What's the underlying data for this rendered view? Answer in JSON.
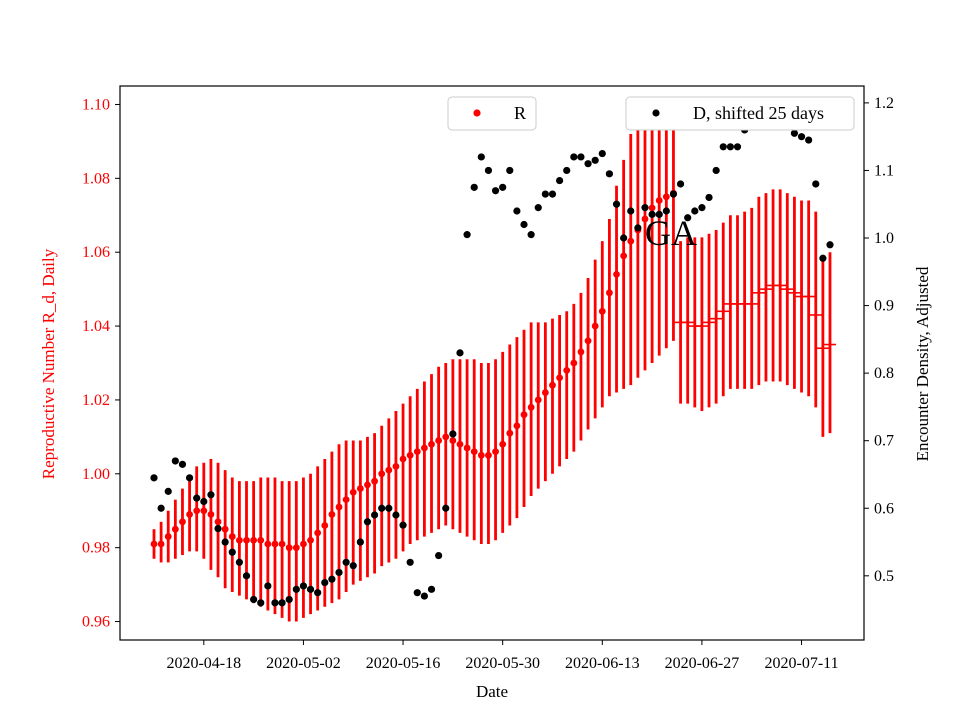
{
  "chart_data": {
    "type": "scatter",
    "annotation": "GA",
    "xlabel": "Date",
    "ylabel_left": "Reproductive Number R_d, Daily",
    "ylabel_right": "Encounter Density, Adjusted",
    "x_ticks": [
      "2020-04-18",
      "2020-05-02",
      "2020-05-16",
      "2020-05-30",
      "2020-06-13",
      "2020-06-27",
      "2020-07-11"
    ],
    "ylim_left": [
      0.955,
      1.105
    ],
    "ylim_right": [
      0.405,
      1.225
    ],
    "yticks_left": [
      "0.96",
      "0.98",
      "1.00",
      "1.02",
      "1.04",
      "1.06",
      "1.08",
      "1.10"
    ],
    "yticks_right": [
      "0.5",
      "0.6",
      "0.7",
      "0.8",
      "0.9",
      "1.0",
      "1.1",
      "1.2"
    ],
    "x_start_date": "2020-04-11",
    "series": [
      {
        "name": "R",
        "color": "#ff0000",
        "axis": "left",
        "day_offsets": [
          0,
          1,
          2,
          3,
          4,
          5,
          6,
          7,
          8,
          9,
          10,
          11,
          12,
          13,
          14,
          15,
          16,
          17,
          18,
          19,
          20,
          21,
          22,
          23,
          24,
          25,
          26,
          27,
          28,
          29,
          30,
          31,
          32,
          33,
          34,
          35,
          36,
          37,
          38,
          39,
          40,
          41,
          42,
          43,
          44,
          45,
          46,
          47,
          48,
          49,
          50,
          51,
          52,
          53,
          54,
          55,
          56,
          57,
          58,
          59,
          60,
          61,
          62,
          63,
          64,
          65,
          66,
          67,
          68,
          69,
          70,
          71,
          72,
          73,
          74,
          75,
          76,
          77,
          78,
          79,
          80,
          81,
          82,
          83,
          84,
          85,
          86,
          87,
          88,
          89,
          90,
          91,
          92,
          93,
          94,
          95
        ],
        "values": [
          0.981,
          0.981,
          0.983,
          0.985,
          0.987,
          0.989,
          0.99,
          0.99,
          0.989,
          0.987,
          0.985,
          0.983,
          0.982,
          0.982,
          0.982,
          0.982,
          0.981,
          0.981,
          0.981,
          0.98,
          0.98,
          0.981,
          0.982,
          0.984,
          0.986,
          0.989,
          0.991,
          0.993,
          0.995,
          0.996,
          0.997,
          0.998,
          1.0,
          1.001,
          1.002,
          1.004,
          1.005,
          1.006,
          1.007,
          1.008,
          1.009,
          1.01,
          1.009,
          1.008,
          1.007,
          1.006,
          1.005,
          1.005,
          1.006,
          1.008,
          1.011,
          1.013,
          1.016,
          1.018,
          1.02,
          1.022,
          1.024,
          1.026,
          1.028,
          1.03,
          1.033,
          1.036,
          1.04,
          1.044,
          1.049,
          1.054,
          1.059,
          1.063,
          1.066,
          1.069,
          1.072,
          1.074,
          1.075,
          1.076,
          1.041,
          1.041,
          1.04,
          1.04,
          1.041,
          1.042,
          1.044,
          1.046,
          1.046,
          1.046,
          1.046,
          1.049,
          1.05,
          1.051,
          1.051,
          1.05,
          1.049,
          1.048,
          1.048,
          1.043,
          1.034,
          1.035
        ],
        "lower": [
          0.977,
          0.976,
          0.976,
          0.977,
          0.978,
          0.979,
          0.979,
          0.977,
          0.974,
          0.972,
          0.969,
          0.968,
          0.967,
          0.966,
          0.965,
          0.964,
          0.963,
          0.962,
          0.961,
          0.96,
          0.96,
          0.961,
          0.962,
          0.963,
          0.964,
          0.965,
          0.966,
          0.968,
          0.97,
          0.971,
          0.972,
          0.973,
          0.975,
          0.976,
          0.977,
          0.979,
          0.981,
          0.982,
          0.983,
          0.984,
          0.985,
          0.986,
          0.985,
          0.984,
          0.983,
          0.982,
          0.981,
          0.981,
          0.982,
          0.984,
          0.986,
          0.988,
          0.991,
          0.994,
          0.996,
          0.998,
          1.0,
          1.002,
          1.004,
          1.006,
          1.009,
          1.012,
          1.015,
          1.018,
          1.021,
          1.022,
          1.023,
          1.024,
          1.026,
          1.028,
          1.03,
          1.032,
          1.034,
          1.036,
          1.019,
          1.019,
          1.018,
          1.017,
          1.018,
          1.019,
          1.021,
          1.023,
          1.023,
          1.023,
          1.023,
          1.024,
          1.025,
          1.025,
          1.025,
          1.024,
          1.023,
          1.022,
          1.021,
          1.018,
          1.01,
          1.011
        ],
        "upper": [
          0.985,
          0.987,
          0.99,
          0.993,
          0.996,
          0.999,
          1.002,
          1.003,
          1.004,
          1.003,
          1.001,
          0.999,
          0.998,
          0.998,
          0.998,
          0.999,
          0.999,
          0.999,
          0.998,
          0.998,
          0.998,
          0.999,
          1.0,
          1.002,
          1.004,
          1.006,
          1.008,
          1.009,
          1.009,
          1.009,
          1.01,
          1.011,
          1.013,
          1.015,
          1.017,
          1.019,
          1.021,
          1.023,
          1.025,
          1.027,
          1.029,
          1.03,
          1.031,
          1.031,
          1.031,
          1.031,
          1.03,
          1.03,
          1.031,
          1.033,
          1.035,
          1.037,
          1.039,
          1.041,
          1.041,
          1.041,
          1.042,
          1.043,
          1.044,
          1.046,
          1.049,
          1.053,
          1.058,
          1.063,
          1.069,
          1.078,
          1.085,
          1.092,
          1.098,
          1.101,
          1.101,
          1.1,
          1.1,
          1.099,
          1.063,
          1.064,
          1.064,
          1.064,
          1.065,
          1.066,
          1.068,
          1.07,
          1.07,
          1.071,
          1.072,
          1.075,
          1.076,
          1.077,
          1.077,
          1.076,
          1.075,
          1.074,
          1.074,
          1.071,
          1.059,
          1.06
        ]
      },
      {
        "name": "D, shifted 25 days",
        "color": "#000000",
        "axis": "right",
        "day_offsets": [
          0,
          1,
          2,
          3,
          4,
          5,
          6,
          7,
          8,
          9,
          10,
          11,
          12,
          13,
          14,
          15,
          16,
          17,
          18,
          19,
          20,
          21,
          22,
          23,
          24,
          25,
          26,
          27,
          28,
          29,
          30,
          31,
          32,
          33,
          34,
          35,
          36,
          37,
          38,
          39,
          40,
          41,
          42,
          43,
          44,
          45,
          46,
          47,
          48,
          49,
          50,
          51,
          52,
          53,
          54,
          55,
          56,
          57,
          58,
          59,
          60,
          61,
          62,
          63,
          64,
          65,
          66,
          67,
          68,
          69,
          70,
          71,
          72,
          73,
          74,
          75,
          76,
          77,
          78,
          79,
          80,
          81,
          82,
          83,
          84,
          85,
          86,
          87,
          88,
          89,
          90,
          91,
          92,
          93,
          94,
          95
        ],
        "values": [
          0.645,
          0.6,
          0.625,
          0.67,
          0.665,
          0.645,
          0.615,
          0.61,
          0.62,
          0.57,
          0.55,
          0.535,
          0.52,
          0.5,
          0.465,
          0.46,
          0.485,
          0.46,
          0.46,
          0.465,
          0.48,
          0.485,
          0.48,
          0.475,
          0.49,
          0.495,
          0.505,
          0.52,
          0.515,
          0.55,
          0.58,
          0.59,
          0.6,
          0.6,
          0.59,
          0.575,
          0.52,
          0.475,
          0.47,
          0.48,
          0.53,
          0.6,
          0.71,
          0.83,
          1.005,
          1.075,
          1.12,
          1.1,
          1.07,
          1.075,
          1.1,
          1.04,
          1.02,
          1.005,
          1.045,
          1.065,
          1.065,
          1.085,
          1.1,
          1.12,
          1.12,
          1.11,
          1.115,
          1.125,
          1.095,
          1.05,
          1.0,
          1.04,
          1.015,
          1.045,
          1.035,
          1.035,
          1.04,
          1.065,
          1.08,
          1.03,
          1.04,
          1.045,
          1.06,
          1.1,
          1.135,
          1.135,
          1.135,
          1.16,
          1.165,
          1.175,
          1.18,
          1.175,
          1.17,
          1.165,
          1.155,
          1.15,
          1.145,
          1.08,
          0.97,
          0.99
        ]
      }
    ],
    "legend": [
      {
        "label": "R",
        "color": "#ff0000",
        "placement": "top-center"
      },
      {
        "label": "D, shifted 25 days",
        "color": "#000000",
        "placement": "top-right"
      }
    ]
  }
}
